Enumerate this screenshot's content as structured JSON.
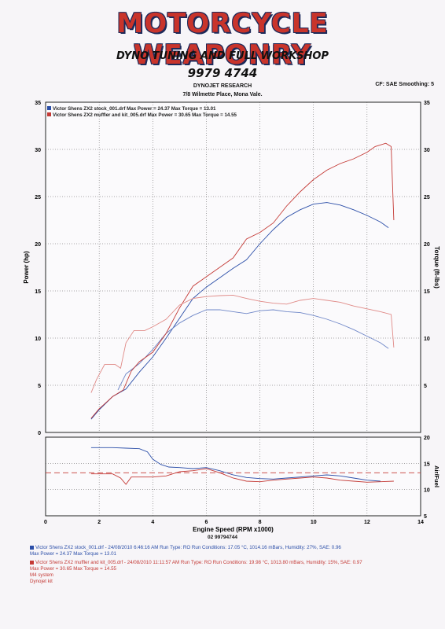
{
  "header": {
    "brand": "MOTORCYCLE WEAPONRY",
    "tagline": "DYNO TUNING AND FULL WORKSHOP",
    "phone": "9979 4744",
    "research": "DYNOJET RESEARCH",
    "address": "7/8 Wilmette Place, Mona Vale.",
    "cf_info": "CF: SAE  Smoothing: 5"
  },
  "chart_data": [
    {
      "type": "line",
      "xlabel": "Engine Speed (RPM x1000)",
      "ylabel": "Power (hp)",
      "ylabel_right": "Torque (ft-lbs)",
      "xlim": [
        0,
        14
      ],
      "ylim": [
        0,
        35
      ],
      "ylim_right": [
        0,
        35
      ],
      "x_ticks": [
        0,
        2,
        4,
        6,
        8,
        10,
        12,
        14
      ],
      "y_ticks": [
        0,
        5,
        10,
        15,
        20,
        25,
        30,
        35
      ],
      "y_ticks_right": [
        5,
        10,
        15,
        20,
        25,
        30,
        35
      ],
      "grid": true,
      "legend_position": "top-left",
      "legend": [
        "Victor Shens ZX2 stock_001.drf Max Power = 24.37    Max Torque = 13.01",
        "Victor Shens ZX2 muffler and kit_005.drf Max Power = 30.65    Max Torque = 14.55"
      ],
      "series": [
        {
          "name": "Victor Shens ZX2 stock_001.drf (Power)",
          "color": "#2b4ea8",
          "x": [
            1.7,
            2.0,
            2.5,
            3.0,
            3.5,
            4.0,
            4.5,
            5.0,
            5.5,
            6.0,
            6.5,
            7.0,
            7.5,
            8.0,
            8.5,
            9.0,
            9.5,
            10.0,
            10.5,
            11.0,
            11.5,
            12.0,
            12.5,
            12.8
          ],
          "y": [
            1.4,
            2.4,
            3.8,
            4.6,
            6.4,
            8.0,
            10.0,
            12.1,
            14.2,
            15.4,
            16.4,
            17.4,
            18.3,
            20.0,
            21.5,
            22.8,
            23.6,
            24.2,
            24.37,
            24.1,
            23.6,
            23.0,
            22.3,
            21.7
          ]
        },
        {
          "name": "Victor Shens ZX2 stock_001.drf (Torque)",
          "color": "#6e86c7",
          "x": [
            2.7,
            3.0,
            3.5,
            4.0,
            4.5,
            5.0,
            5.5,
            6.0,
            6.5,
            7.0,
            7.5,
            8.0,
            8.5,
            9.0,
            9.5,
            10.0,
            10.5,
            11.0,
            11.5,
            12.0,
            12.5,
            12.8
          ],
          "y": [
            4.5,
            6.2,
            7.3,
            8.8,
            10.5,
            11.6,
            12.4,
            13.0,
            13.01,
            12.8,
            12.6,
            12.9,
            13.0,
            12.8,
            12.7,
            12.4,
            12.0,
            11.5,
            10.9,
            10.2,
            9.5,
            8.9
          ]
        },
        {
          "name": "Victor Shens ZX2 muffler and kit_005.drf (Power)",
          "color": "#c43a36",
          "x": [
            1.7,
            2.0,
            2.5,
            2.9,
            3.2,
            3.5,
            4.0,
            4.5,
            5.0,
            5.5,
            6.0,
            6.5,
            7.0,
            7.5,
            8.0,
            8.5,
            9.0,
            9.5,
            10.0,
            10.5,
            11.0,
            11.5,
            12.0,
            12.3,
            12.7,
            12.9,
            13.0
          ],
          "y": [
            1.5,
            2.5,
            3.8,
            4.5,
            6.5,
            7.5,
            8.5,
            10.5,
            13.2,
            15.5,
            16.5,
            17.5,
            18.5,
            20.5,
            21.2,
            22.2,
            24.0,
            25.5,
            26.8,
            27.8,
            28.5,
            29.0,
            29.7,
            30.3,
            30.65,
            30.3,
            22.5
          ]
        },
        {
          "name": "Victor Shens ZX2 muffler and kit_005.drf (Torque)",
          "color": "#e08a87",
          "x": [
            1.7,
            1.9,
            2.2,
            2.6,
            2.8,
            3.0,
            3.3,
            3.7,
            4.0,
            4.5,
            5.0,
            5.5,
            6.0,
            6.5,
            7.0,
            7.5,
            8.0,
            8.5,
            9.0,
            9.5,
            10.0,
            10.5,
            11.0,
            11.5,
            12.0,
            12.5,
            12.9,
            13.0
          ],
          "y": [
            4.2,
            5.6,
            7.2,
            7.2,
            6.8,
            9.5,
            10.8,
            10.8,
            11.2,
            12.0,
            13.5,
            14.2,
            14.4,
            14.5,
            14.55,
            14.2,
            13.9,
            13.7,
            13.6,
            14.0,
            14.2,
            14.0,
            13.8,
            13.4,
            13.1,
            12.8,
            12.5,
            9.0
          ]
        }
      ]
    },
    {
      "type": "line",
      "ylabel_right": "Air/Fuel",
      "xlim": [
        0,
        14
      ],
      "ylim_right": [
        5,
        20
      ],
      "x_ticks": [
        0,
        2,
        4,
        6,
        8,
        10,
        12,
        14
      ],
      "y_ticks_right": [
        5,
        10,
        15,
        20
      ],
      "grid": true,
      "series": [
        {
          "name": "Victor Shens ZX2 stock_001.drf (Air/Fuel)",
          "color": "#2b4ea8",
          "x": [
            1.7,
            2.5,
            3.0,
            3.5,
            3.8,
            4.0,
            4.3,
            4.6,
            5.0,
            5.5,
            6.0,
            6.5,
            7.0,
            7.5,
            8.0,
            8.5,
            9.0,
            9.5,
            10.0,
            10.5,
            11.0,
            11.5,
            12.0,
            12.5
          ],
          "y": [
            18.0,
            18.0,
            17.9,
            17.8,
            17.2,
            15.8,
            14.8,
            14.3,
            14.2,
            14.0,
            14.2,
            13.6,
            12.8,
            12.3,
            12.1,
            12.0,
            12.2,
            12.4,
            12.6,
            12.8,
            12.6,
            12.2,
            11.8,
            11.6
          ]
        },
        {
          "name": "Victor Shens ZX2 muffler and kit_005.drf (Air/Fuel)",
          "color": "#c43a36",
          "x": [
            1.7,
            2.5,
            2.8,
            3.0,
            3.2,
            3.5,
            4.0,
            4.5,
            5.0,
            5.5,
            6.0,
            6.5,
            7.0,
            7.5,
            8.0,
            8.5,
            9.0,
            9.5,
            10.0,
            10.5,
            11.0,
            11.5,
            12.0,
            12.5,
            13.0
          ],
          "y": [
            13.0,
            13.0,
            12.2,
            11.0,
            12.4,
            12.4,
            12.4,
            12.6,
            13.4,
            13.6,
            14.0,
            13.2,
            12.2,
            11.6,
            11.5,
            11.8,
            12.0,
            12.2,
            12.4,
            12.2,
            11.8,
            11.6,
            11.4,
            11.5,
            11.6
          ]
        }
      ],
      "reference_line": {
        "y": 13.2,
        "style": "dashed",
        "color": "#c43a36"
      }
    }
  ],
  "code": "02 99794744",
  "legend_block": {
    "run1_line1": "Victor Shens ZX2 stock_001.drf - 24/08/2010 6:46:16 AM  Run Type: RO  Run Conditions: 17.05 °C, 1014.16 mBars,  Humidity: 27%, SAE: 0.96",
    "run1_line2": "Max Power = 24.37  Max Torque = 13.01",
    "run2_line1": "Victor Shens ZX2 muffler and kit_005.drf - 24/08/2010 11:11:57 AM  Run Type: RO  Run Conditions: 19.98 °C, 1013.80 mBars,  Humidity: 15%, SAE: 0.97",
    "run2_line2": "Max Power = 30.65  Max Torque = 14.55",
    "run2_line3": "M4 system",
    "run2_line4": "Dynojet kit"
  }
}
